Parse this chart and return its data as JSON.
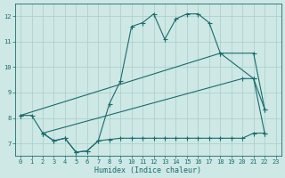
{
  "xlabel": "Humidex (Indice chaleur)",
  "bg_color": "#cde8e5",
  "line_color": "#1a6b6b",
  "grid_color": "#aaccca",
  "xlim": [
    -0.5,
    23.5
  ],
  "ylim": [
    6.5,
    12.5
  ],
  "yticks": [
    7,
    8,
    9,
    10,
    11,
    12
  ],
  "xticks": [
    0,
    1,
    2,
    3,
    4,
    5,
    6,
    7,
    8,
    9,
    10,
    11,
    12,
    13,
    14,
    15,
    16,
    17,
    18,
    19,
    20,
    21,
    22,
    23
  ],
  "line1_x": [
    0,
    1,
    2,
    3,
    4,
    5,
    6,
    7,
    8,
    9,
    10,
    11,
    12,
    13,
    14,
    15,
    16,
    17,
    18,
    21,
    22
  ],
  "line1_y": [
    8.1,
    8.1,
    7.4,
    7.1,
    7.2,
    6.65,
    6.7,
    7.1,
    8.55,
    9.45,
    11.6,
    11.75,
    12.1,
    11.1,
    11.9,
    12.1,
    12.1,
    11.75,
    10.55,
    9.55,
    8.35
  ],
  "line2_x": [
    0,
    18,
    21,
    22
  ],
  "line2_y": [
    8.1,
    10.55,
    10.55,
    8.35
  ],
  "line3_x": [
    2,
    20,
    21,
    22
  ],
  "line3_y": [
    7.4,
    9.55,
    9.55,
    7.4
  ],
  "line4_x": [
    2,
    3,
    4,
    5,
    6,
    7,
    8,
    9,
    10,
    11,
    12,
    13,
    14,
    15,
    16,
    17,
    18,
    19,
    20,
    21,
    22
  ],
  "line4_y": [
    7.4,
    7.1,
    7.2,
    6.65,
    6.7,
    7.1,
    7.15,
    7.2,
    7.2,
    7.2,
    7.2,
    7.2,
    7.2,
    7.2,
    7.2,
    7.2,
    7.2,
    7.2,
    7.2,
    7.4,
    7.4
  ]
}
